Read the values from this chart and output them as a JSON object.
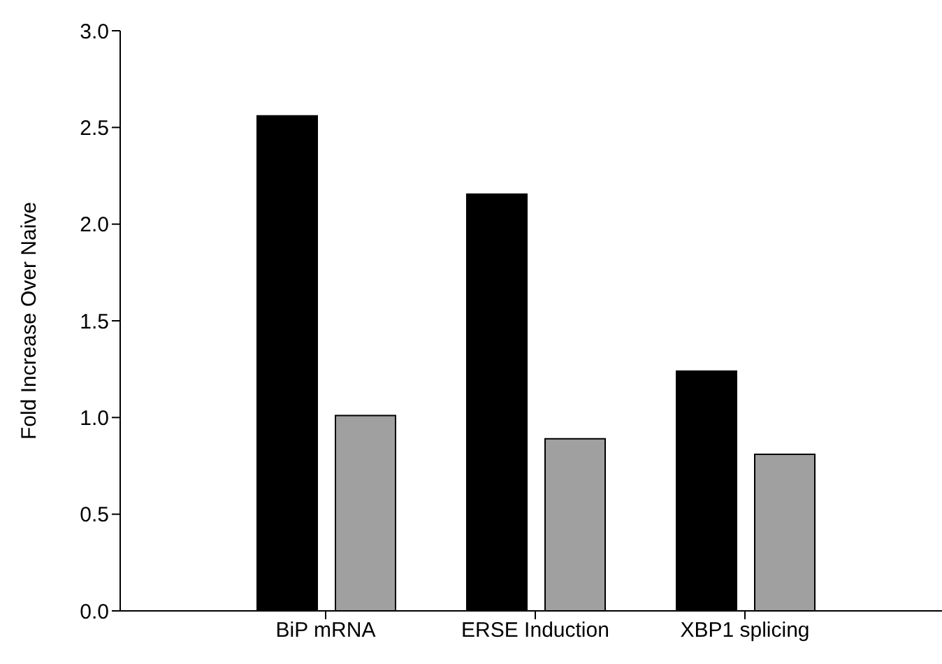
{
  "chart_data": {
    "type": "bar",
    "ylabel": "Fold Increase Over Naive",
    "categories": [
      "BiP mRNA",
      "ERSE Induction",
      "XBP1 splicing"
    ],
    "series": [
      {
        "color": "#000000",
        "values": [
          2.56,
          2.155,
          1.24
        ]
      },
      {
        "color": "#a0a0a0",
        "values": [
          1.01,
          0.89,
          0.81
        ]
      }
    ],
    "ylim": [
      0,
      3
    ],
    "yticks": [
      {
        "value": 0,
        "label": "0.0"
      },
      {
        "value": 0.5,
        "label": "0.5"
      },
      {
        "value": 1,
        "label": "1.0"
      },
      {
        "value": 1.5,
        "label": "1.5"
      },
      {
        "value": 2,
        "label": "2.0"
      },
      {
        "value": 2.5,
        "label": "2.5"
      },
      {
        "value": 3,
        "label": "3.0"
      }
    ],
    "grid": false,
    "legend": false
  }
}
